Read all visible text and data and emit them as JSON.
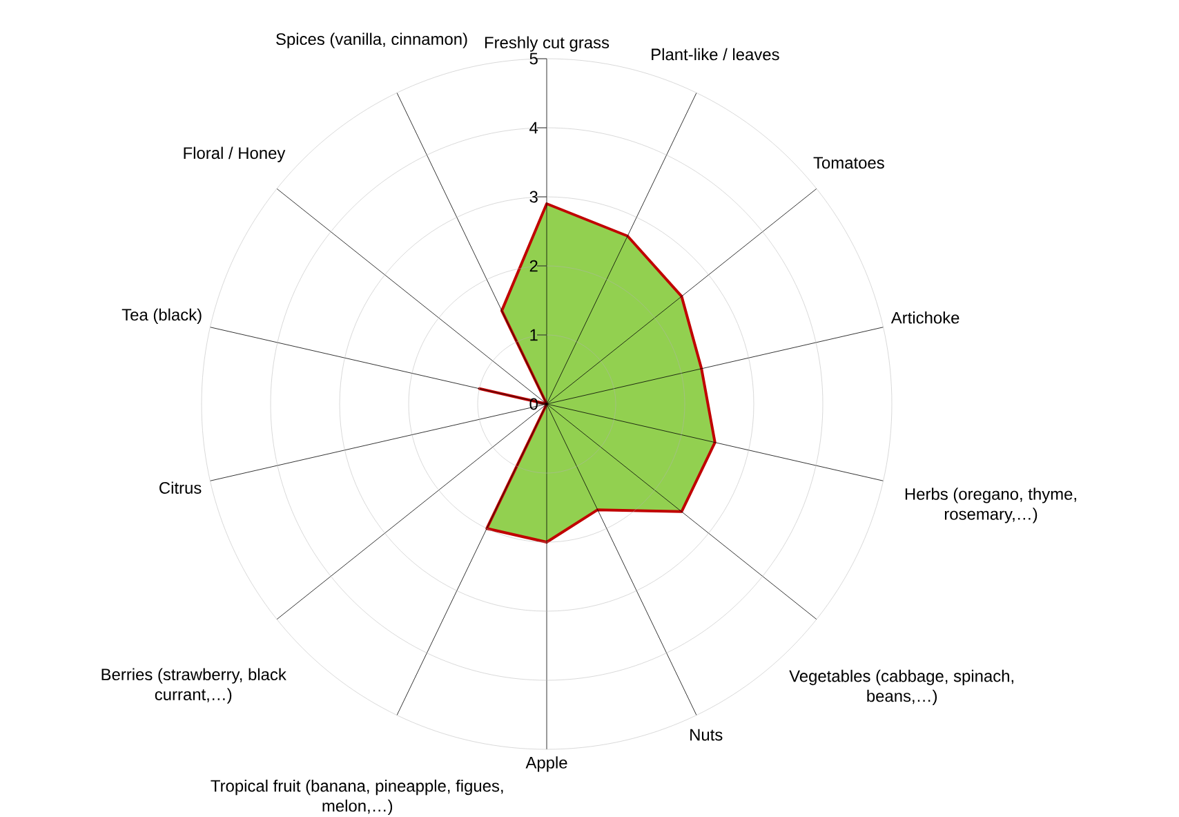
{
  "chart_data": {
    "type": "radar",
    "categories": [
      "Freshly cut grass",
      "Plant-like / leaves",
      "Tomatoes",
      "Artichoke",
      "Herbs (oregano, thyme, rosemary,…)",
      "Vegetables (cabbage, spinach, beans,…)",
      "Nuts",
      "Apple",
      "Tropical fruit (banana, pineapple, figues, melon,…)",
      "Berries (strawberry, black currant,…)",
      "Citrus",
      "Tea (black)",
      "Floral / Honey",
      "Spices (vanilla, cinnamon)"
    ],
    "series": [
      {
        "color": "#92d050",
        "values": [
          2.9,
          2.7,
          2.5,
          2.3,
          2.5,
          2.5,
          1.7,
          2.0,
          2.0,
          0,
          0,
          1.0,
          0,
          1.5
        ]
      }
    ],
    "ylim": [
      0,
      5
    ],
    "yticks": [
      0,
      1,
      2,
      3,
      4,
      5
    ]
  }
}
